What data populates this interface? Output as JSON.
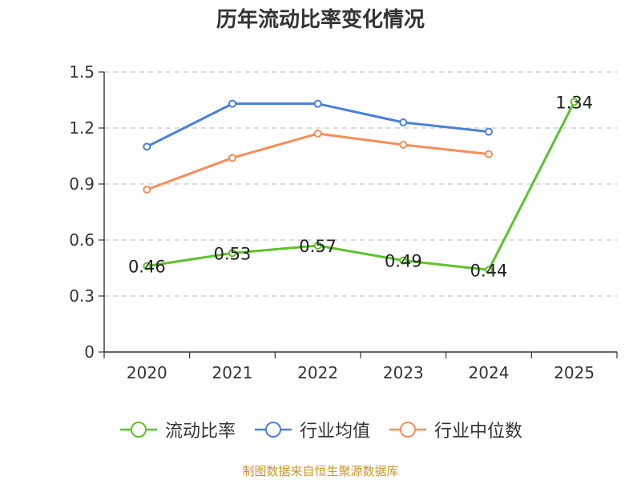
{
  "chart_data": {
    "type": "line",
    "title": "历年流动比率变化情况",
    "categories": [
      "2020",
      "2021",
      "2022",
      "2023",
      "2024",
      "2025"
    ],
    "ylim": [
      0,
      1.5
    ],
    "yticks": [
      "0",
      "0.3",
      "0.6",
      "0.9",
      "1.2",
      "1.5"
    ],
    "ytick_values": [
      0,
      0.3,
      0.6,
      0.9,
      1.2,
      1.5
    ],
    "grid": true,
    "legend_position": "bottom-center",
    "series": [
      {
        "name": "流动比率",
        "color": "#5cc22c",
        "values": [
          0.46,
          0.53,
          0.57,
          0.49,
          0.44,
          1.34
        ],
        "labels": [
          "0.46",
          "0.53",
          "0.57",
          "0.49",
          "0.44",
          "1.34"
        ],
        "show_labels": true
      },
      {
        "name": "行业均值",
        "color": "#4a7fdb",
        "values": [
          1.1,
          1.33,
          1.33,
          1.23,
          1.18,
          null
        ],
        "show_labels": false
      },
      {
        "name": "行业中位数",
        "color": "#f48e5a",
        "values": [
          0.87,
          1.04,
          1.17,
          1.11,
          1.06,
          null
        ],
        "show_labels": false
      }
    ]
  },
  "source_text": "制图数据来自恒生聚源数据库"
}
